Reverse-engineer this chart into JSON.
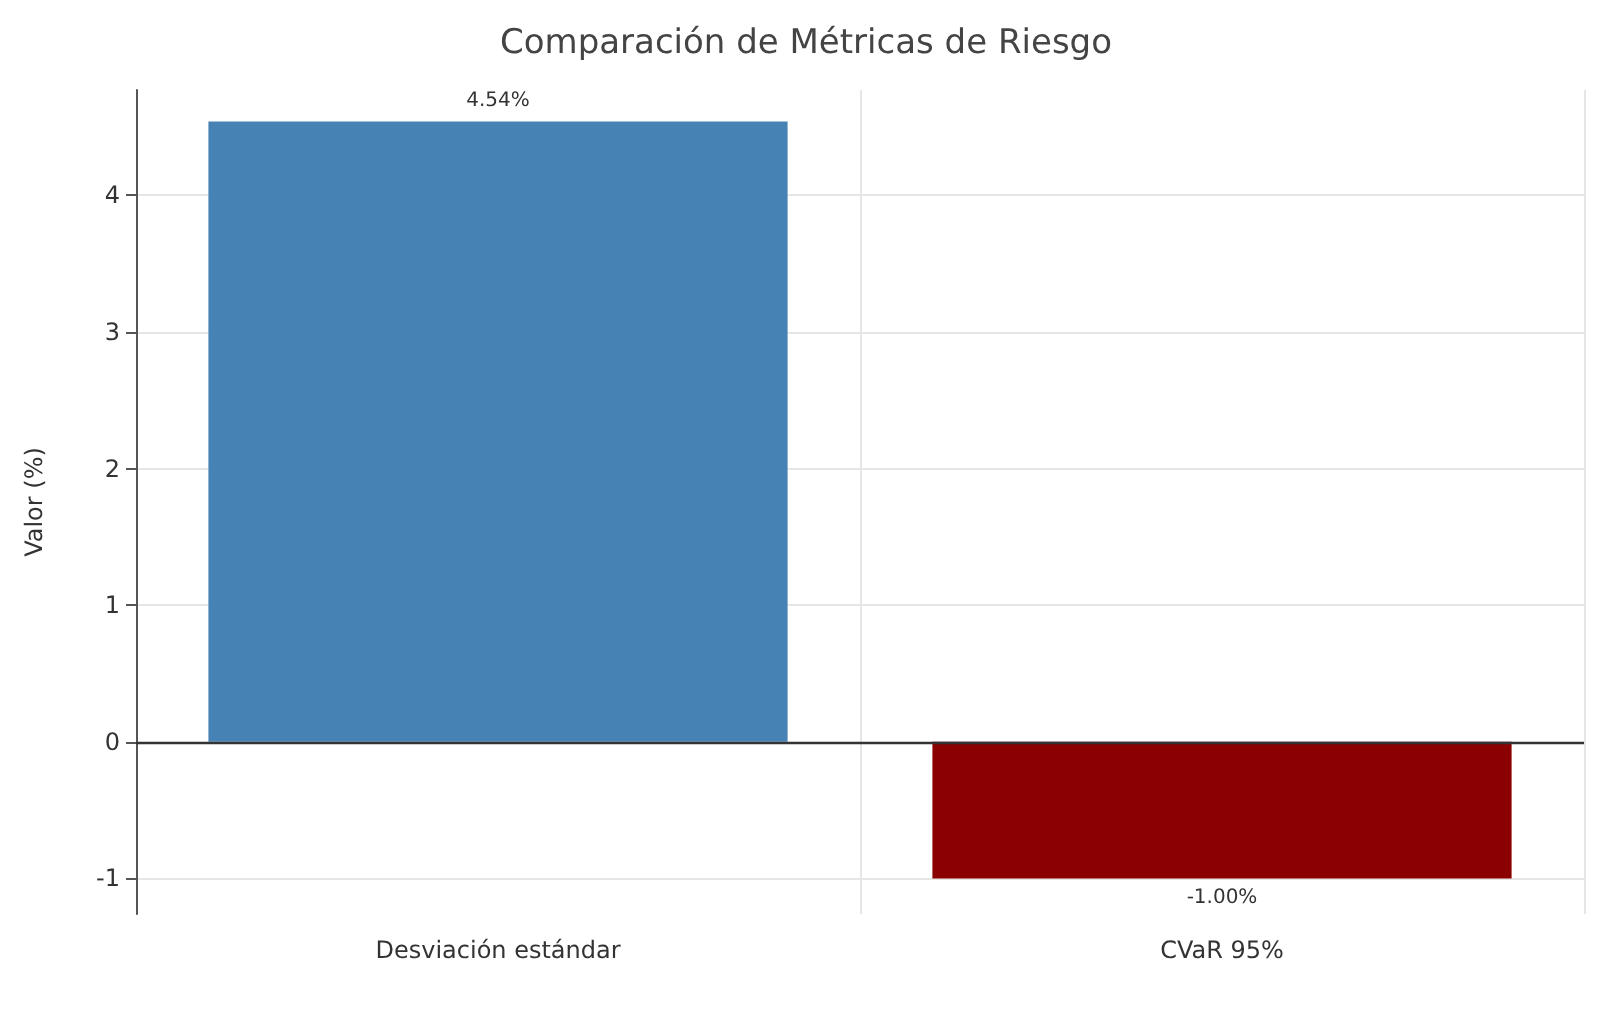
{
  "chart_data": {
    "type": "bar",
    "title": "Comparación de Métricas de Riesgo",
    "ylabel": "Valor (%)",
    "categories": [
      "Desviación estándar",
      "CVaR 95%"
    ],
    "values": [
      4.54,
      -1.0
    ],
    "colors": [
      "#4682b4",
      "#8b0000"
    ],
    "value_labels": [
      "4.54%",
      "-1.00%"
    ],
    "ylim": [
      -1.26,
      4.77
    ],
    "yticks": [
      -1,
      0,
      1,
      2,
      3,
      4
    ],
    "ref_lines": [
      {
        "axis": "y",
        "value": 0,
        "color": "#333333"
      }
    ],
    "grid": true
  }
}
